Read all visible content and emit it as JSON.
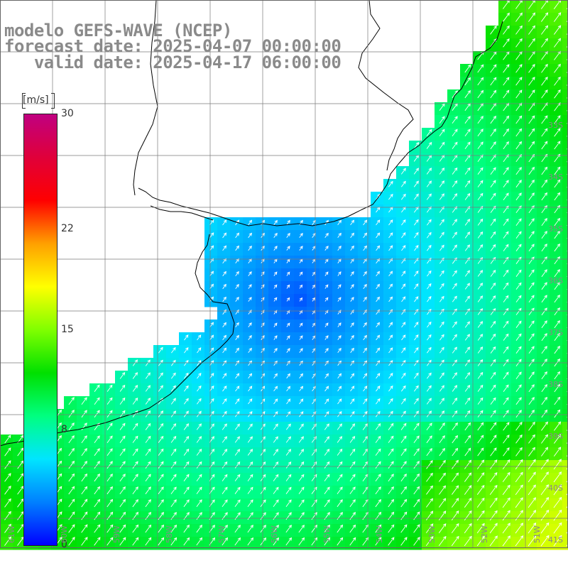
{
  "title": {
    "line1": "modelo GEFS-WAVE (NCEP)",
    "line2": "forecast date: 2025-04-07 00:00:00",
    "line3": "   valid date: 2025-04-17 06:00:00"
  },
  "colorbar": {
    "unit": "[m/s]",
    "ticks": [
      "30",
      "22",
      "15",
      "8",
      "0"
    ],
    "tick_values": [
      30,
      22,
      15,
      8,
      0
    ],
    "range": [
      0,
      30
    ],
    "colors": [
      "#0000ff",
      "#0080ff",
      "#00e5ff",
      "#00ff80",
      "#00e000",
      "#80ff00",
      "#ffff00",
      "#ffa000",
      "#ff0000",
      "#e0003a",
      "#c00080"
    ]
  },
  "map": {
    "lat_labels": [
      "33S",
      "34S",
      "35S",
      "36S",
      "37S",
      "38S",
      "39S",
      "40S",
      "41S"
    ],
    "lon_labels": [
      "61W",
      "60W",
      "59W",
      "58W",
      "57W",
      "56W",
      "55W",
      "54W",
      "53W",
      "52W",
      "51W"
    ],
    "colors": {
      "land": "#ffffff",
      "coast": "#000000",
      "grid": "#7a7a7a",
      "arrow": "#ffffff"
    }
  }
}
